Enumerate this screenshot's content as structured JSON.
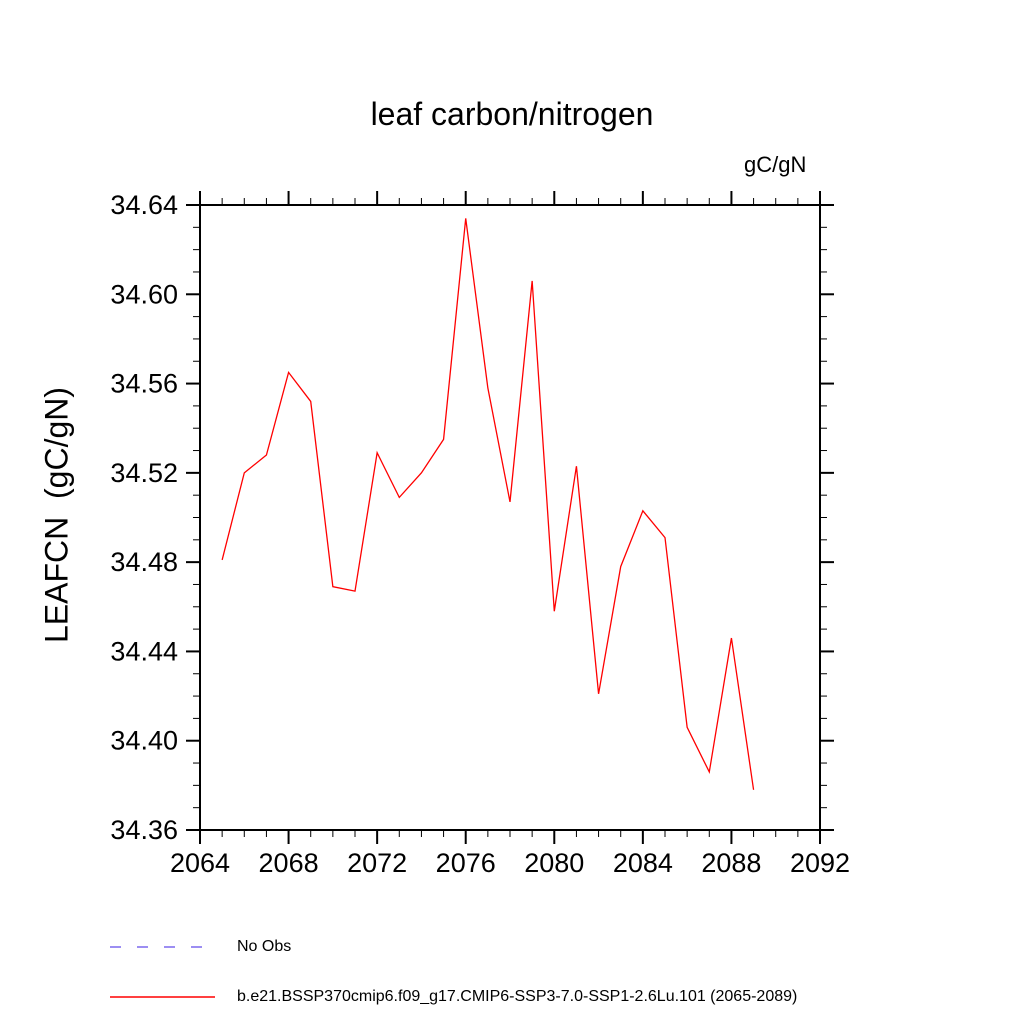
{
  "chart_data": {
    "type": "line",
    "title": "leaf carbon/nitrogen",
    "units": "gC/gN",
    "ylabel": "LEAFCN  (gC/gN)",
    "xlabel": "",
    "xlim": [
      2064,
      2092
    ],
    "ylim": [
      34.36,
      34.64
    ],
    "xticks": [
      2064,
      2068,
      2072,
      2076,
      2080,
      2084,
      2088,
      2092
    ],
    "xtick_labels": [
      "2064",
      "2068",
      "2072",
      "2076",
      "2080",
      "2084",
      "2088",
      "2092"
    ],
    "yticks": [
      34.36,
      34.4,
      34.44,
      34.48,
      34.52,
      34.56,
      34.6,
      34.64
    ],
    "ytick_labels": [
      "34.36",
      "34.40",
      "34.44",
      "34.48",
      "34.52",
      "34.56",
      "34.60",
      "34.64"
    ],
    "x_minor_step": 1,
    "y_minor_step": 0.01,
    "grid": false,
    "frame_color": "#000000",
    "series": [
      {
        "name": "b.e21.BSSP370cmip6.f09_g17.CMIP6-SSP3-7.0-SSP1-2.6Lu.101 (2065-2089)",
        "color": "#ff0000",
        "style": "solid",
        "x": [
          2065,
          2066,
          2067,
          2068,
          2069,
          2070,
          2071,
          2072,
          2073,
          2074,
          2075,
          2076,
          2077,
          2078,
          2079,
          2080,
          2081,
          2082,
          2083,
          2084,
          2085,
          2086,
          2087,
          2088,
          2089
        ],
        "y": [
          34.481,
          34.52,
          34.528,
          34.565,
          34.552,
          34.469,
          34.467,
          34.529,
          34.509,
          34.52,
          34.535,
          34.634,
          34.558,
          34.507,
          34.606,
          34.458,
          34.523,
          34.421,
          34.478,
          34.503,
          34.491,
          34.406,
          34.386,
          34.446,
          34.378
        ]
      }
    ],
    "legend": [
      {
        "label": "No Obs",
        "color": "#7b68ee",
        "style": "dashed"
      },
      {
        "label": "b.e21.BSSP370cmip6.f09_g17.CMIP6-SSP3-7.0-SSP1-2.6Lu.101 (2065-2089)",
        "color": "#ff0000",
        "style": "solid"
      }
    ],
    "legend_position": "bottom-left"
  }
}
